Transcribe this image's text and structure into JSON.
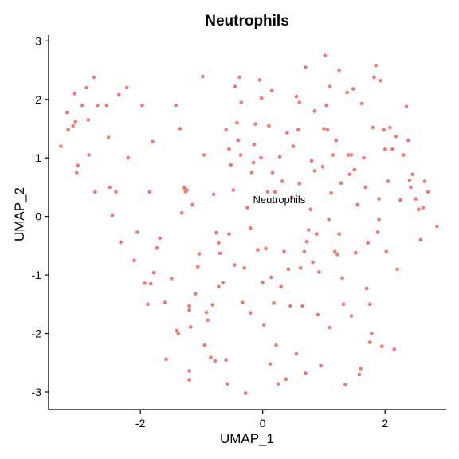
{
  "chart_data": {
    "type": "scatter",
    "title": "Neutrophils",
    "xlabel": "UMAP_1",
    "ylabel": "UMAP_2",
    "xlim": [
      -3.5,
      3.0
    ],
    "ylim": [
      -3.3,
      3.1
    ],
    "xticks": [
      -2,
      0,
      2
    ],
    "yticks": [
      -3,
      -2,
      -1,
      0,
      1,
      2,
      3
    ],
    "grid": false,
    "legend": "none",
    "point_color": "#F8766D",
    "annotations": [
      {
        "text": "Neutrophils",
        "x": 0.27,
        "y": 0.28
      }
    ],
    "series": [
      {
        "name": "Neutrophils",
        "points": [
          [
            -3.3,
            1.2
          ],
          [
            -3.2,
            1.78
          ],
          [
            -3.18,
            1.48
          ],
          [
            -3.1,
            1.55
          ],
          [
            -3.08,
            2.1
          ],
          [
            -3.06,
            1.62
          ],
          [
            -3.04,
            0.75
          ],
          [
            -3.02,
            0.87
          ],
          [
            -2.95,
            1.9
          ],
          [
            -2.88,
            2.2
          ],
          [
            -2.85,
            1.65
          ],
          [
            -2.84,
            1.05
          ],
          [
            -2.76,
            2.38
          ],
          [
            -2.74,
            0.42
          ],
          [
            -2.7,
            1.9
          ],
          [
            -2.55,
            1.9
          ],
          [
            -2.52,
            1.35
          ],
          [
            -2.5,
            0.5
          ],
          [
            -2.46,
            0.02
          ],
          [
            -2.4,
            0.42
          ],
          [
            -2.35,
            2.08
          ],
          [
            -2.32,
            -0.44
          ],
          [
            -2.22,
            2.2
          ],
          [
            -2.2,
            1.0
          ],
          [
            -2.1,
            -0.75
          ],
          [
            -2.05,
            -0.27
          ],
          [
            -1.97,
            1.9
          ],
          [
            -1.93,
            -1.14
          ],
          [
            -1.88,
            -1.5
          ],
          [
            -1.85,
            0.42
          ],
          [
            -1.83,
            -1.15
          ],
          [
            -1.8,
            1.28
          ],
          [
            -1.78,
            -0.96
          ],
          [
            -1.73,
            -0.54
          ],
          [
            -1.68,
            -0.37
          ],
          [
            -1.6,
            -1.47
          ],
          [
            -1.58,
            -2.44
          ],
          [
            -1.49,
            -1.06
          ],
          [
            -1.42,
            1.9
          ],
          [
            -1.38,
            -2.0
          ],
          [
            -1.35,
            1.5
          ],
          [
            -1.32,
            0.06
          ],
          [
            -1.28,
            0.49
          ],
          [
            -1.26,
            0.42
          ],
          [
            -1.24,
            0.45
          ],
          [
            -1.2,
            -1.53
          ],
          [
            -1.2,
            -1.6
          ],
          [
            -1.2,
            -2.64
          ],
          [
            -1.2,
            -2.79
          ],
          [
            -1.18,
            -1.89
          ],
          [
            -1.15,
            0.2
          ],
          [
            -1.1,
            -1.32
          ],
          [
            -1.06,
            -0.86
          ],
          [
            -1.04,
            -0.64
          ],
          [
            -0.98,
            2.39
          ],
          [
            -0.96,
            1.05
          ],
          [
            -0.92,
            -1.64
          ],
          [
            -0.9,
            -1.77
          ],
          [
            -0.85,
            -2.41
          ],
          [
            -0.82,
            -1.51
          ],
          [
            -0.8,
            0.38
          ],
          [
            -0.78,
            -2.47
          ],
          [
            -0.76,
            -0.28
          ],
          [
            -0.72,
            -0.45
          ],
          [
            -0.72,
            -1.2
          ],
          [
            -0.7,
            -0.63
          ],
          [
            -0.65,
            -1.13
          ],
          [
            -0.6,
            1.48
          ],
          [
            -0.58,
            -2.86
          ],
          [
            -0.55,
            1.15
          ],
          [
            -0.52,
            0.88
          ],
          [
            -0.48,
            0.45
          ],
          [
            -0.46,
            -0.83
          ],
          [
            -0.45,
            2.22
          ],
          [
            -0.42,
            1.6
          ],
          [
            -0.4,
            1.3
          ],
          [
            -0.38,
            2.38
          ],
          [
            -0.36,
            1.05
          ],
          [
            -0.33,
            -1.47
          ],
          [
            -0.3,
            -0.88
          ],
          [
            -0.28,
            -3.02
          ],
          [
            -0.25,
            0.15
          ],
          [
            -0.2,
            -0.2
          ],
          [
            -0.18,
            0.75
          ],
          [
            -0.15,
            0.92
          ],
          [
            -0.14,
            1.23
          ],
          [
            -0.12,
            1.58
          ],
          [
            -0.08,
            -0.57
          ],
          [
            -0.05,
            2.33
          ],
          [
            -0.03,
            1.0
          ],
          [
            -0.02,
            2.02
          ],
          [
            0.0,
            -1.13
          ],
          [
            0.02,
            -1.85
          ],
          [
            0.05,
            -0.55
          ],
          [
            0.08,
            0.42
          ],
          [
            0.1,
            1.55
          ],
          [
            0.12,
            -2.52
          ],
          [
            0.14,
            -1.04
          ],
          [
            0.16,
            0.75
          ],
          [
            0.18,
            -1.48
          ],
          [
            0.2,
            0.42
          ],
          [
            0.22,
            -2.2
          ],
          [
            0.25,
            -2.86
          ],
          [
            0.28,
            1.02
          ],
          [
            0.32,
            0.6
          ],
          [
            0.35,
            -0.6
          ],
          [
            0.38,
            -2.78
          ],
          [
            0.4,
            1.43
          ],
          [
            0.42,
            -0.9
          ],
          [
            0.45,
            -1.53
          ],
          [
            0.48,
            0.32
          ],
          [
            0.5,
            1.2
          ],
          [
            0.55,
            2.05
          ],
          [
            0.58,
            1.48
          ],
          [
            0.6,
            0.56
          ],
          [
            0.62,
            -0.88
          ],
          [
            0.65,
            -1.53
          ],
          [
            0.68,
            -0.6
          ],
          [
            0.7,
            -2.68
          ],
          [
            0.72,
            -0.43
          ],
          [
            0.75,
            -0.23
          ],
          [
            0.78,
            0.12
          ],
          [
            0.8,
            0.95
          ],
          [
            0.82,
            -0.78
          ],
          [
            0.85,
            0.78
          ],
          [
            0.88,
            -0.3
          ],
          [
            0.9,
            -1.68
          ],
          [
            0.92,
            -0.95
          ],
          [
            0.95,
            -2.55
          ],
          [
            0.98,
            0.85
          ],
          [
            1.0,
            1.5
          ],
          [
            1.02,
            2.75
          ],
          [
            1.04,
            1.9
          ],
          [
            1.06,
            1.48
          ],
          [
            1.08,
            -0.05
          ],
          [
            1.1,
            2.22
          ],
          [
            1.12,
            0.4
          ],
          [
            1.15,
            1.05
          ],
          [
            1.18,
            -0.6
          ],
          [
            1.2,
            1.3
          ],
          [
            1.22,
            -0.65
          ],
          [
            1.25,
            -0.3
          ],
          [
            1.28,
            0.57
          ],
          [
            1.3,
            -1.05
          ],
          [
            1.32,
            -1.5
          ],
          [
            1.35,
            -2.87
          ],
          [
            1.38,
            2.12
          ],
          [
            1.4,
            1.05
          ],
          [
            1.42,
            0.72
          ],
          [
            1.45,
            1.05
          ],
          [
            1.48,
            2.18
          ],
          [
            1.5,
            0.8
          ],
          [
            1.52,
            -0.62
          ],
          [
            1.55,
            0.2
          ],
          [
            1.58,
            -2.7
          ],
          [
            1.6,
            -2.6
          ],
          [
            1.62,
            1.93
          ],
          [
            1.65,
            1.0
          ],
          [
            1.68,
            0.5
          ],
          [
            1.7,
            -1.23
          ],
          [
            1.72,
            -0.45
          ],
          [
            1.75,
            -1.5
          ],
          [
            1.78,
            -2.0
          ],
          [
            1.8,
            1.52
          ],
          [
            1.82,
            2.38
          ],
          [
            1.85,
            2.58
          ],
          [
            1.88,
            -0.27
          ],
          [
            1.9,
            0.3
          ],
          [
            1.92,
            2.32
          ],
          [
            1.95,
            -2.22
          ],
          [
            1.98,
            1.48
          ],
          [
            2.0,
            1.15
          ],
          [
            2.02,
            -0.6
          ],
          [
            2.05,
            0.6
          ],
          [
            2.08,
            1.52
          ],
          [
            2.12,
            1.15
          ],
          [
            2.15,
            -2.27
          ],
          [
            2.18,
            1.37
          ],
          [
            2.2,
            -0.9
          ],
          [
            2.25,
            0.28
          ],
          [
            2.3,
            1.05
          ],
          [
            2.35,
            1.88
          ],
          [
            2.38,
            1.3
          ],
          [
            2.4,
            0.62
          ],
          [
            2.42,
            0.5
          ],
          [
            2.45,
            0.72
          ],
          [
            2.5,
            0.3
          ],
          [
            2.55,
            0.12
          ],
          [
            2.58,
            -0.4
          ],
          [
            2.62,
            0.15
          ],
          [
            2.65,
            0.6
          ],
          [
            2.7,
            0.42
          ],
          [
            2.85,
            -0.17
          ],
          [
            0.85,
            1.8
          ],
          [
            0.7,
            2.55
          ],
          [
            1.25,
            2.5
          ],
          [
            0.6,
            1.95
          ],
          [
            0.15,
            2.15
          ],
          [
            -0.35,
            1.95
          ],
          [
            -1.4,
            -1.95
          ],
          [
            -0.95,
            -2.2
          ],
          [
            -0.55,
            -0.3
          ],
          [
            1.1,
            -1.9
          ],
          [
            1.45,
            -1.7
          ],
          [
            0.3,
            -1.2
          ],
          [
            -0.2,
            -1.65
          ],
          [
            1.9,
            -0.05
          ],
          [
            0.55,
            -2.35
          ],
          [
            -0.6,
            -2.45
          ],
          [
            1.75,
            -2.15
          ]
        ]
      }
    ]
  }
}
